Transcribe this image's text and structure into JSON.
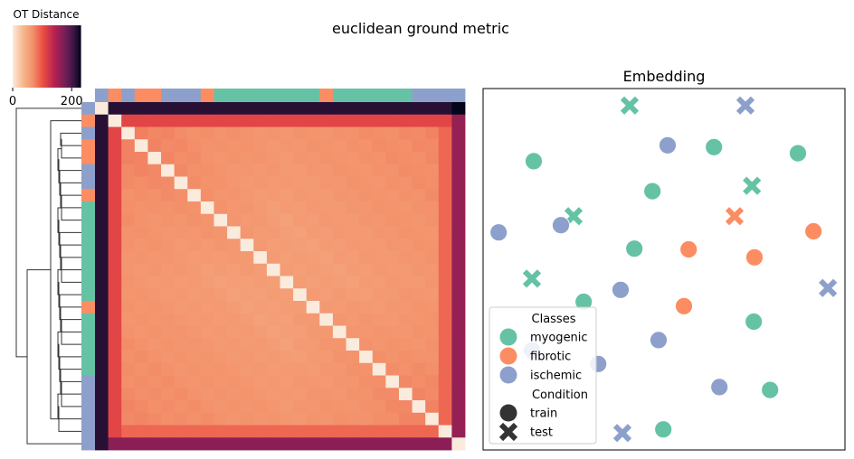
{
  "suptitle": "euclidean ground metric",
  "chart_data": [
    {
      "type": "heatmap",
      "title": "",
      "colorbar": {
        "label": "OT Distance",
        "ticks": [
          0,
          200
        ],
        "range": [
          0,
          230
        ],
        "colormap": "rocket_r"
      },
      "n": 28,
      "row_classes": [
        "ischemic",
        "fibrotic",
        "ischemic",
        "fibrotic",
        "fibrotic",
        "ischemic",
        "ischemic",
        "fibrotic",
        "myogenic",
        "myogenic",
        "myogenic",
        "myogenic",
        "myogenic",
        "myogenic",
        "myogenic",
        "myogenic",
        "fibrotic",
        "myogenic",
        "myogenic",
        "myogenic",
        "myogenic",
        "myogenic",
        "ischemic",
        "ischemic",
        "ischemic",
        "ischemic",
        "ischemic",
        "ischemic"
      ],
      "col_classes": [
        "ischemic",
        "fibrotic",
        "ischemic",
        "fibrotic",
        "fibrotic",
        "ischemic",
        "ischemic",
        "ischemic",
        "fibrotic",
        "myogenic",
        "myogenic",
        "myogenic",
        "myogenic",
        "myogenic",
        "myogenic",
        "myogenic",
        "myogenic",
        "fibrotic",
        "myogenic",
        "myogenic",
        "myogenic",
        "myogenic",
        "myogenic",
        "myogenic",
        "ischemic",
        "ischemic",
        "ischemic",
        "ischemic"
      ],
      "distance_summary": {
        "diagonal": 0,
        "typical_inner": 70,
        "row0_and_last": 215,
        "row1_and_col1": 110,
        "inner_last_col": 160
      },
      "dendrogram": "row clustering on left"
    },
    {
      "type": "scatter",
      "title": "Embedding",
      "class_colors": {
        "myogenic": "#66c2a5",
        "fibrotic": "#fc8d62",
        "ischemic": "#8da0cb"
      },
      "legend": {
        "classes_title": "Classes",
        "classes": [
          "myogenic",
          "fibrotic",
          "ischemic"
        ],
        "condition_title": "Condition",
        "conditions": [
          "train",
          "test"
        ],
        "placement": "lower-left"
      },
      "xlim": [
        0,
        100
      ],
      "ylim": [
        0,
        100
      ],
      "points": [
        {
          "x": 40.5,
          "y": 95.3,
          "cls": "myogenic",
          "cond": "test"
        },
        {
          "x": 72.5,
          "y": 95.3,
          "cls": "ischemic",
          "cond": "test"
        },
        {
          "x": 51.0,
          "y": 84.3,
          "cls": "ischemic",
          "cond": "train"
        },
        {
          "x": 63.8,
          "y": 83.8,
          "cls": "myogenic",
          "cond": "train"
        },
        {
          "x": 87.0,
          "y": 82.1,
          "cls": "myogenic",
          "cond": "train"
        },
        {
          "x": 14.0,
          "y": 79.9,
          "cls": "myogenic",
          "cond": "train"
        },
        {
          "x": 74.3,
          "y": 73.1,
          "cls": "myogenic",
          "cond": "test"
        },
        {
          "x": 46.8,
          "y": 71.6,
          "cls": "myogenic",
          "cond": "train"
        },
        {
          "x": 25.0,
          "y": 64.7,
          "cls": "myogenic",
          "cond": "test"
        },
        {
          "x": 69.5,
          "y": 64.7,
          "cls": "fibrotic",
          "cond": "test"
        },
        {
          "x": 21.5,
          "y": 62.2,
          "cls": "ischemic",
          "cond": "train"
        },
        {
          "x": 4.3,
          "y": 60.2,
          "cls": "ischemic",
          "cond": "train"
        },
        {
          "x": 91.3,
          "y": 60.5,
          "cls": "fibrotic",
          "cond": "train"
        },
        {
          "x": 41.8,
          "y": 55.7,
          "cls": "myogenic",
          "cond": "train"
        },
        {
          "x": 56.8,
          "y": 55.5,
          "cls": "fibrotic",
          "cond": "train"
        },
        {
          "x": 75.0,
          "y": 53.3,
          "cls": "fibrotic",
          "cond": "train"
        },
        {
          "x": 13.5,
          "y": 47.4,
          "cls": "myogenic",
          "cond": "test"
        },
        {
          "x": 95.3,
          "y": 44.8,
          "cls": "ischemic",
          "cond": "test"
        },
        {
          "x": 38.0,
          "y": 44.3,
          "cls": "ischemic",
          "cond": "train"
        },
        {
          "x": 27.8,
          "y": 41.0,
          "cls": "myogenic",
          "cond": "train"
        },
        {
          "x": 55.5,
          "y": 39.8,
          "cls": "fibrotic",
          "cond": "train"
        },
        {
          "x": 74.8,
          "y": 35.5,
          "cls": "myogenic",
          "cond": "train"
        },
        {
          "x": 48.5,
          "y": 30.4,
          "cls": "ischemic",
          "cond": "train"
        },
        {
          "x": 13.5,
          "y": 27.6,
          "cls": "ischemic",
          "cond": "train"
        },
        {
          "x": 31.8,
          "y": 23.8,
          "cls": "ischemic",
          "cond": "train"
        },
        {
          "x": 65.3,
          "y": 17.4,
          "cls": "ischemic",
          "cond": "train"
        },
        {
          "x": 79.3,
          "y": 16.6,
          "cls": "myogenic",
          "cond": "train"
        },
        {
          "x": 49.8,
          "y": 5.7,
          "cls": "myogenic",
          "cond": "train"
        },
        {
          "x": 38.5,
          "y": 4.7,
          "cls": "ischemic",
          "cond": "test"
        }
      ]
    }
  ]
}
